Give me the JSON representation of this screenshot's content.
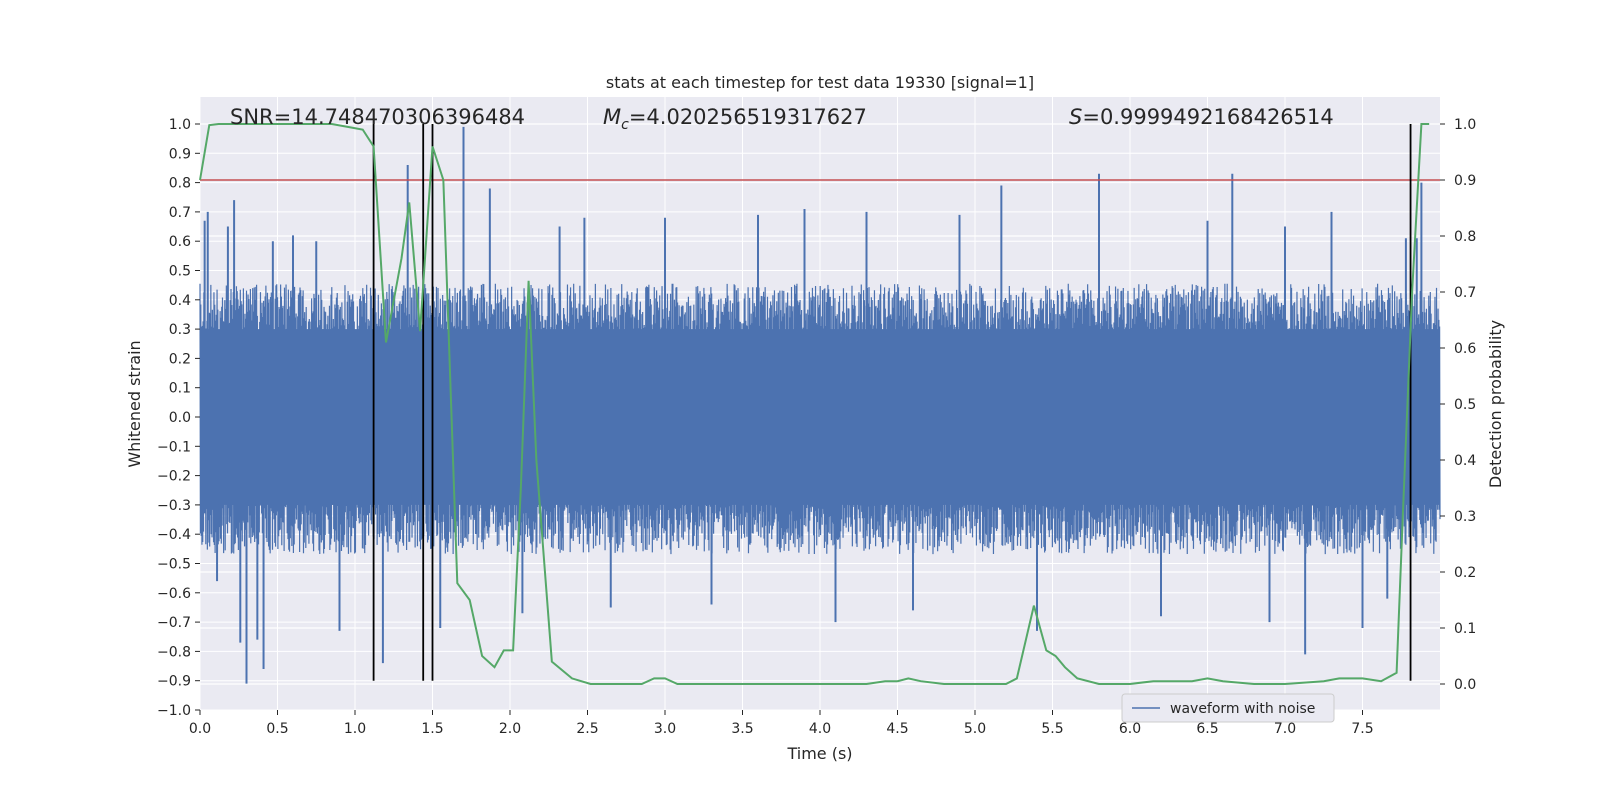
{
  "chart_data": {
    "type": "line",
    "title": "stats at each timestep for test data 19330 [signal=1]",
    "xlabel": "Time (s)",
    "ylabel": "Whitened strain",
    "y2label": "Detection probability",
    "xlim": [
      0.0,
      8.0
    ],
    "ylim": [
      -1.0,
      1.0
    ],
    "y2lim": [
      -0.045,
      1.0
    ],
    "xticks": [
      0.0,
      0.5,
      1.0,
      1.5,
      2.0,
      2.5,
      3.0,
      3.5,
      4.0,
      4.5,
      5.0,
      5.5,
      6.0,
      6.5,
      7.0,
      7.5
    ],
    "yticks": [
      1.0,
      0.9,
      0.8,
      0.7,
      0.6,
      0.5,
      0.4,
      0.3,
      0.2,
      0.1,
      0.0,
      -0.1,
      -0.2,
      -0.3,
      -0.4,
      -0.5,
      -0.6,
      -0.7,
      -0.8,
      -0.9,
      -1.0
    ],
    "y2ticks": [
      1.0,
      0.9,
      0.8,
      0.7,
      0.6,
      0.5,
      0.4,
      0.3,
      0.2,
      0.1,
      0.0
    ],
    "xtick_labels": [
      "0.0",
      "0.5",
      "1.0",
      "1.5",
      "2.0",
      "2.5",
      "3.0",
      "3.5",
      "4.0",
      "4.5",
      "5.0",
      "5.5",
      "6.0",
      "6.5",
      "7.0",
      "7.5"
    ],
    "ytick_labels": [
      "1.0",
      "0.9",
      "0.8",
      "0.7",
      "0.6",
      "0.5",
      "0.4",
      "0.3",
      "0.2",
      "0.1",
      "0.0",
      "−0.1",
      "−0.2",
      "−0.3",
      "−0.4",
      "−0.5",
      "−0.6",
      "−0.7",
      "−0.8",
      "−0.9",
      "−1.0"
    ],
    "y2tick_labels": [
      "1.0",
      "0.9",
      "0.8",
      "0.7",
      "0.6",
      "0.5",
      "0.4",
      "0.3",
      "0.2",
      "0.1",
      "0.0"
    ],
    "annotations": {
      "snr": "SNR=14.748470306396484",
      "mc_symbol": "M",
      "mc_subscript": "c",
      "mc_value": "=4.020256519317627",
      "s_symbol": "S",
      "s_value": "=0.9999492168426514"
    },
    "legend": {
      "label": "waveform with noise",
      "location": "lower-right"
    },
    "threshold": {
      "axis": "secondary",
      "value": 0.9,
      "color": "#c44e52"
    },
    "markers_x": [
      1.12,
      1.44,
      1.5,
      7.81
    ],
    "markers_range": [
      -0.9,
      1.0
    ],
    "waveform": {
      "name": "waveform with noise",
      "color": "#4c72b0",
      "t_start": 0.0,
      "t_end": 8.0,
      "envelope_pos": 0.35,
      "envelope_neg": -0.36,
      "spikes": [
        {
          "t": 0.03,
          "v": 0.67
        },
        {
          "t": 0.05,
          "v": 0.7
        },
        {
          "t": 0.11,
          "v": -0.56
        },
        {
          "t": 0.18,
          "v": 0.65
        },
        {
          "t": 0.22,
          "v": 0.74
        },
        {
          "t": 0.26,
          "v": -0.77
        },
        {
          "t": 0.3,
          "v": -0.91
        },
        {
          "t": 0.37,
          "v": -0.76
        },
        {
          "t": 0.41,
          "v": -0.86
        },
        {
          "t": 0.47,
          "v": 0.6
        },
        {
          "t": 0.6,
          "v": 0.62
        },
        {
          "t": 0.75,
          "v": 0.6
        },
        {
          "t": 0.9,
          "v": -0.73
        },
        {
          "t": 1.18,
          "v": -0.84
        },
        {
          "t": 1.34,
          "v": 0.86
        },
        {
          "t": 1.55,
          "v": -0.72
        },
        {
          "t": 1.7,
          "v": 0.99
        },
        {
          "t": 1.87,
          "v": 0.78
        },
        {
          "t": 2.08,
          "v": -0.67
        },
        {
          "t": 2.32,
          "v": 0.65
        },
        {
          "t": 2.48,
          "v": 0.68
        },
        {
          "t": 2.65,
          "v": -0.65
        },
        {
          "t": 3.0,
          "v": 0.68
        },
        {
          "t": 3.3,
          "v": -0.64
        },
        {
          "t": 3.6,
          "v": 0.69
        },
        {
          "t": 3.9,
          "v": 0.71
        },
        {
          "t": 4.1,
          "v": -0.7
        },
        {
          "t": 4.3,
          "v": 0.7
        },
        {
          "t": 4.6,
          "v": -0.66
        },
        {
          "t": 4.9,
          "v": 0.69
        },
        {
          "t": 5.17,
          "v": 0.79
        },
        {
          "t": 5.4,
          "v": -0.73
        },
        {
          "t": 5.8,
          "v": 0.83
        },
        {
          "t": 6.2,
          "v": -0.68
        },
        {
          "t": 6.5,
          "v": 0.67
        },
        {
          "t": 6.66,
          "v": 0.83
        },
        {
          "t": 6.9,
          "v": -0.7
        },
        {
          "t": 7.0,
          "v": 0.65
        },
        {
          "t": 7.13,
          "v": -0.81
        },
        {
          "t": 7.3,
          "v": 0.7
        },
        {
          "t": 7.5,
          "v": -0.72
        },
        {
          "t": 7.66,
          "v": -0.62
        },
        {
          "t": 7.78,
          "v": 0.61
        },
        {
          "t": 7.85,
          "v": 0.61
        },
        {
          "t": 7.88,
          "v": 0.8
        }
      ]
    },
    "probability": {
      "name": "detection probability",
      "color": "#55a868",
      "x": [
        0.0,
        0.06,
        0.12,
        0.3,
        0.5,
        0.85,
        1.05,
        1.12,
        1.2,
        1.3,
        1.35,
        1.42,
        1.5,
        1.57,
        1.66,
        1.74,
        1.82,
        1.9,
        1.96,
        2.02,
        2.07,
        2.12,
        2.17,
        2.27,
        2.4,
        2.52,
        2.7,
        2.85,
        2.93,
        3.0,
        3.08,
        3.2,
        3.4,
        3.7,
        4.0,
        4.3,
        4.42,
        4.5,
        4.57,
        4.65,
        4.8,
        5.0,
        5.2,
        5.27,
        5.38,
        5.46,
        5.52,
        5.58,
        5.66,
        5.8,
        6.0,
        6.15,
        6.25,
        6.4,
        6.5,
        6.6,
        6.8,
        7.0,
        7.25,
        7.35,
        7.5,
        7.62,
        7.72,
        7.76,
        7.82,
        7.88,
        7.93
      ],
      "y": [
        0.9,
        0.998,
        1.0,
        1.0,
        1.0,
        1.0,
        0.99,
        0.96,
        0.61,
        0.76,
        0.86,
        0.63,
        0.96,
        0.9,
        0.18,
        0.15,
        0.05,
        0.03,
        0.06,
        0.06,
        0.35,
        0.72,
        0.4,
        0.04,
        0.01,
        0.0,
        0.0,
        0.0,
        0.01,
        0.01,
        0.0,
        0.0,
        0.0,
        0.0,
        0.0,
        0.0,
        0.005,
        0.005,
        0.01,
        0.005,
        0.0,
        0.0,
        0.0,
        0.01,
        0.14,
        0.06,
        0.05,
        0.03,
        0.01,
        0.0,
        0.0,
        0.005,
        0.005,
        0.005,
        0.01,
        0.005,
        0.0,
        0.0,
        0.005,
        0.01,
        0.01,
        0.005,
        0.02,
        0.3,
        0.7,
        1.0,
        1.0
      ]
    }
  }
}
